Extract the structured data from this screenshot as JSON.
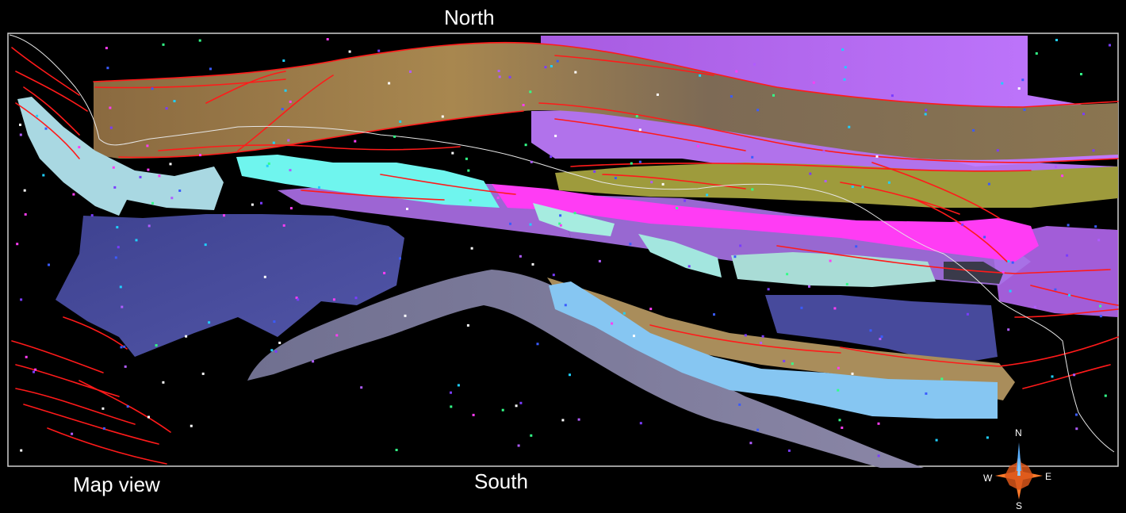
{
  "labels": {
    "north": "North",
    "south": "South",
    "map_view": "Map view"
  },
  "compass": {
    "n": "N",
    "s": "S",
    "e": "E",
    "w": "W"
  },
  "colors": {
    "background": "#000000",
    "frame": "#cfcfcf",
    "fault_traces": "#ff1a1a",
    "coastline": "#e6e6e6",
    "tan_surface": "#9c7f52",
    "violet_surface": "#b86cf2",
    "olive_surface": "#9d9a3a",
    "cyan_surface": "#6ff2ea",
    "pale_cyan_surface": "#a8e6e0",
    "magenta_surface": "#ff4cff",
    "blue_surface": "#4a4e9e",
    "slate_surface": "#6a6882",
    "sky_blue_surface": "#86c4f0",
    "compass_star": "#ff7a2a",
    "compass_needle": "#5ab0ff"
  },
  "icons": [
    "compass-rose-icon"
  ]
}
